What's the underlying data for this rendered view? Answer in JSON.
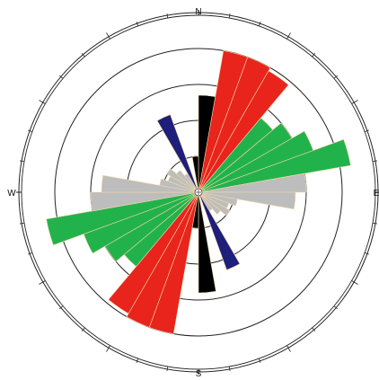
{
  "chart_data": {
    "type": "rose",
    "title": "",
    "directions": {
      "n": "N",
      "e": "E",
      "s": "S",
      "w": "W"
    },
    "bin_width_deg": 10,
    "rings": [
      1,
      2,
      3,
      4,
      5
    ],
    "rmax": 5,
    "center_marker": true,
    "series": [
      {
        "color": "#e8241d",
        "petals": [
          {
            "az": 15,
            "r": 4.0
          },
          {
            "az": 25,
            "r": 4.0
          },
          {
            "az": 35,
            "r": 3.9
          },
          {
            "az": 195,
            "r": 4.0
          },
          {
            "az": 205,
            "r": 4.0
          },
          {
            "az": 215,
            "r": 3.9
          }
        ]
      },
      {
        "color": "#22b24c",
        "petals": [
          {
            "az": 45,
            "r": 2.7
          },
          {
            "az": 55,
            "r": 3.0
          },
          {
            "az": 65,
            "r": 3.4
          },
          {
            "az": 75,
            "r": 4.3
          },
          {
            "az": 225,
            "r": 2.7
          },
          {
            "az": 235,
            "r": 3.0
          },
          {
            "az": 245,
            "r": 3.4
          },
          {
            "az": 255,
            "r": 4.3
          }
        ]
      },
      {
        "color": "#bdbdbd",
        "petals": [
          {
            "az": 85,
            "r": 3.0
          },
          {
            "az": 95,
            "r": 2.7
          },
          {
            "az": 105,
            "r": 1.1
          },
          {
            "az": 115,
            "r": 0.9
          },
          {
            "az": 125,
            "r": 1.0
          },
          {
            "az": 135,
            "r": 0.8
          },
          {
            "az": 145,
            "r": 0.6
          },
          {
            "az": 265,
            "r": 3.0
          },
          {
            "az": 275,
            "r": 2.7
          },
          {
            "az": 285,
            "r": 1.1
          },
          {
            "az": 295,
            "r": 0.9
          },
          {
            "az": 305,
            "r": 1.0
          },
          {
            "az": 315,
            "r": 0.8
          },
          {
            "az": 325,
            "r": 0.6
          }
        ]
      },
      {
        "color": "#1d1f7a",
        "petals": [
          {
            "az": 155,
            "r": 2.3
          },
          {
            "az": 335,
            "r": 2.3
          }
        ]
      },
      {
        "color": "#000000",
        "petals": [
          {
            "az": 5,
            "r": 2.7
          },
          {
            "az": 175,
            "r": 2.8
          },
          {
            "az": 185,
            "r": 1.0
          },
          {
            "az": 355,
            "r": 1.0
          }
        ]
      }
    ]
  }
}
